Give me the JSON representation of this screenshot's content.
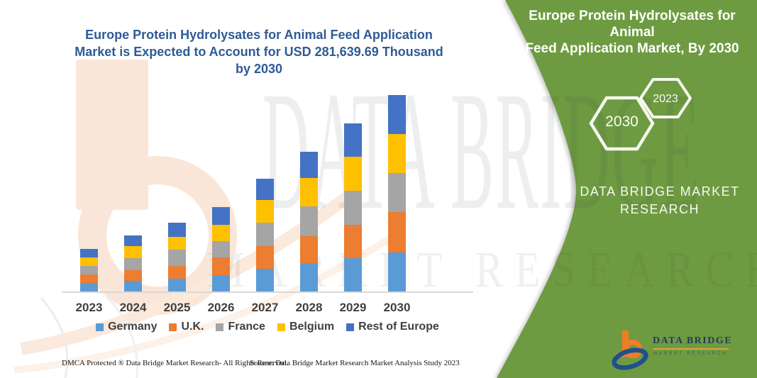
{
  "main": {
    "title": "Europe Protein Hydrolysates for Animal Feed Application Market is Expected to Account for USD 281,639.69 Thousand by 2030",
    "title_lines": [
      "Europe Protein Hydrolysates for Animal Feed Application",
      "Market is Expected to Account for USD 281,639.69 Thousand",
      "by 2030"
    ],
    "title_color": "#2e5b97"
  },
  "chart_data": {
    "type": "bar",
    "stacked": true,
    "title": "Europe Protein Hydrolysates for Animal Feed Application Market is Expected to Account for USD 281,639.69 Thousand by 2030",
    "stated_value_2030_usd_thousand": 281639.69,
    "categories": [
      "2023",
      "2024",
      "2025",
      "2026",
      "2027",
      "2028",
      "2029",
      "2030"
    ],
    "series": [
      {
        "name": "Germany",
        "color": "#5B9BD5",
        "values": [
          12,
          15,
          18,
          23,
          32,
          40,
          47,
          55
        ]
      },
      {
        "name": "U.K.",
        "color": "#ED7D31",
        "values": [
          12,
          15,
          18,
          25,
          32,
          38,
          47,
          57
        ]
      },
      {
        "name": "France",
        "color": "#A5A5A5",
        "values": [
          12,
          17,
          23,
          23,
          33,
          42,
          48,
          55
        ]
      },
      {
        "name": "Belgium",
        "color": "#FFC000",
        "values": [
          12,
          17,
          18,
          23,
          32,
          40,
          48,
          55
        ]
      },
      {
        "name": "Rest of Europe",
        "color": "#4472C4",
        "values": [
          12,
          15,
          20,
          25,
          30,
          37,
          47,
          55
        ]
      }
    ],
    "value_units": "relative height in px (no y-axis shown in source figure)",
    "totals_relative": [
      60,
      79,
      97,
      119,
      159,
      197,
      237,
      277
    ],
    "xlabel": "",
    "ylabel": "",
    "axis": {
      "x_visible": true,
      "y_visible": false,
      "gridlines": false
    },
    "legend_position": "bottom",
    "x_label_color": "#404040"
  },
  "panel": {
    "bg_color": "#6E9B41",
    "heading": "Europe Protein Hydrolysates for Animal Feed Application Market, By 2030",
    "heading_lines": [
      "Europe Protein Hydrolysates for Animal",
      "Feed Application Market, By 2030"
    ],
    "hexagons": [
      "2030",
      "2023"
    ],
    "brand_lines": [
      "DATA BRIDGE MARKET",
      "RESEARCH"
    ]
  },
  "logo": {
    "name": "DATA BRIDGE",
    "subtitle": "MARKET RESEARCH",
    "orange": "#f07c28",
    "blue": "#20508f"
  },
  "footer": {
    "left": "DMCA Protected ® Data Bridge Market Research-  All Rights Reserved.",
    "right": "Source: Data Bridge Market Research  Market Analysis Study 2023"
  },
  "watermarks": {
    "big": "DATA BRIDGE",
    "small": "MARKET RESEARCH"
  }
}
